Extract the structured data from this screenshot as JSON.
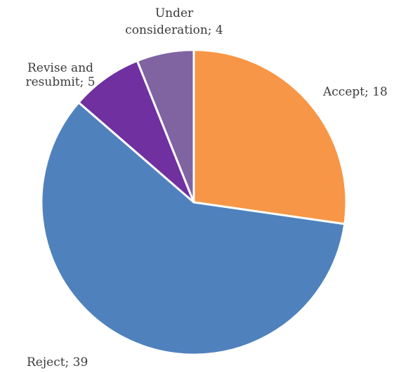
{
  "chart_data": {
    "type": "pie",
    "categories": [
      "Accept",
      "Reject",
      "Revise and resubmit",
      "Under consideration"
    ],
    "values": [
      18,
      39,
      5,
      4
    ],
    "labels": [
      "Accept; 18",
      "Reject; 39",
      "Revise and resubmit; 5",
      "Under consideration; 4"
    ],
    "label_lines": [
      [
        "Accept; 18"
      ],
      [
        "Reject; 39"
      ],
      [
        "Revise and",
        "resubmit; 5"
      ],
      [
        "Under",
        "consideration; 4"
      ]
    ],
    "colors": [
      "#F79646",
      "#4F81BD",
      "#7030A0",
      "#8064A2"
    ],
    "start_angle_deg": 0,
    "direction": "clockwise",
    "legend": "none"
  }
}
